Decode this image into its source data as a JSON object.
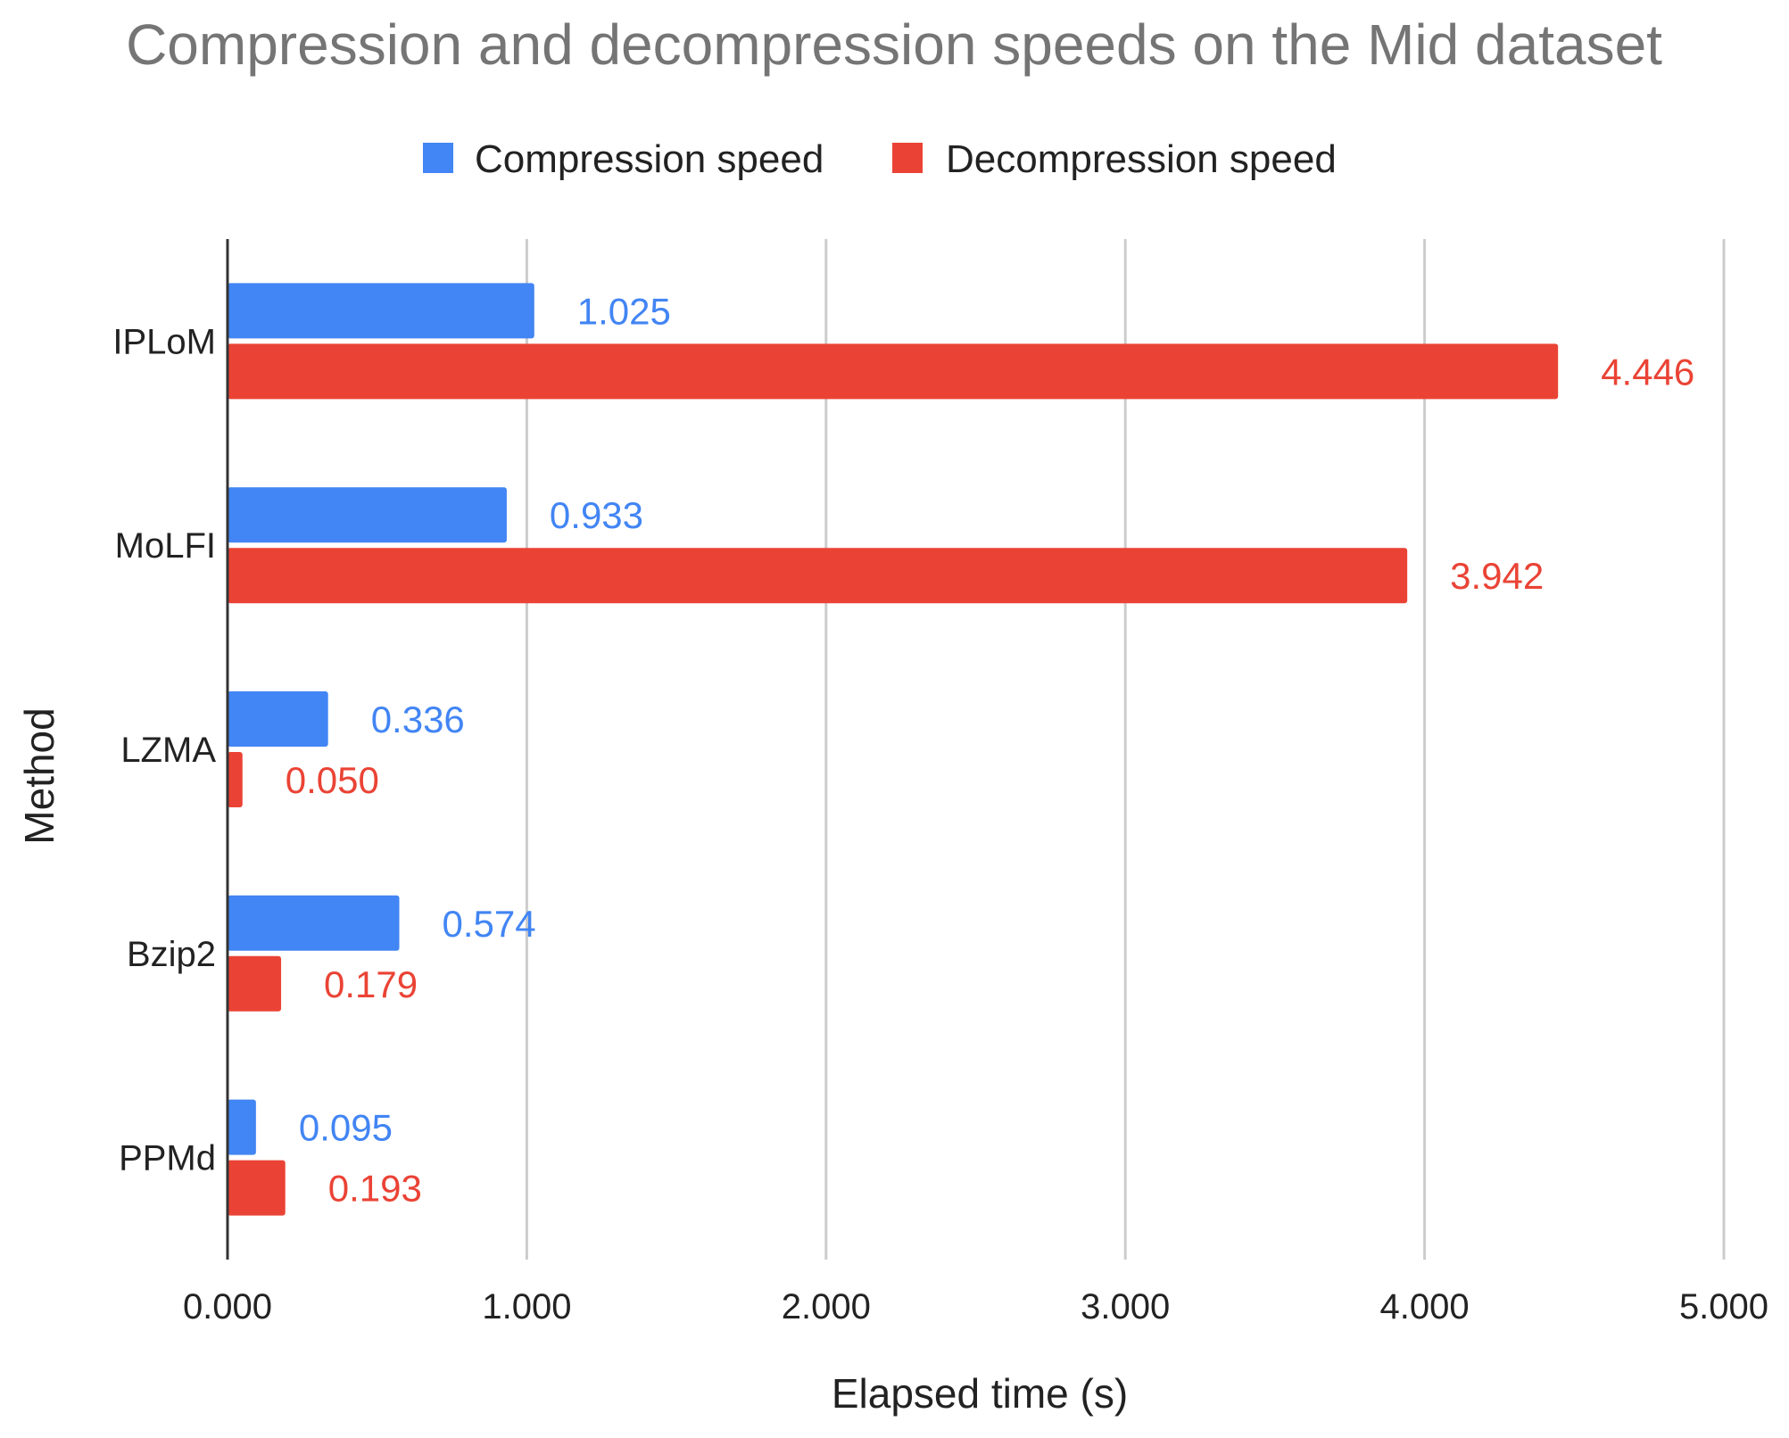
{
  "chart_data": {
    "type": "bar",
    "orientation": "horizontal",
    "title": "Compression and decompression speeds on the Mid dataset",
    "xlabel": "Elapsed time (s)",
    "ylabel": "Method",
    "xlim": [
      0,
      5
    ],
    "xticks": [
      0,
      1,
      2,
      3,
      4,
      5
    ],
    "xtick_labels": [
      "0.000",
      "1.000",
      "2.000",
      "3.000",
      "4.000",
      "5.000"
    ],
    "grid": true,
    "legend_position": "top",
    "categories": [
      "IPLoM",
      "MoLFI",
      "LZMA",
      "Bzip2",
      "PPMd"
    ],
    "series": [
      {
        "name": "Compression speed",
        "color": "#4285F4",
        "values": [
          1.025,
          0.933,
          0.336,
          0.574,
          0.095
        ],
        "labels": [
          "1.025",
          "0.933",
          "0.336",
          "0.574",
          "0.095"
        ]
      },
      {
        "name": "Decompression speed",
        "color": "#EA4335",
        "values": [
          4.446,
          3.942,
          0.05,
          0.179,
          0.193
        ],
        "labels": [
          "4.446",
          "3.942",
          "0.050",
          "0.179",
          "0.193"
        ]
      }
    ]
  }
}
